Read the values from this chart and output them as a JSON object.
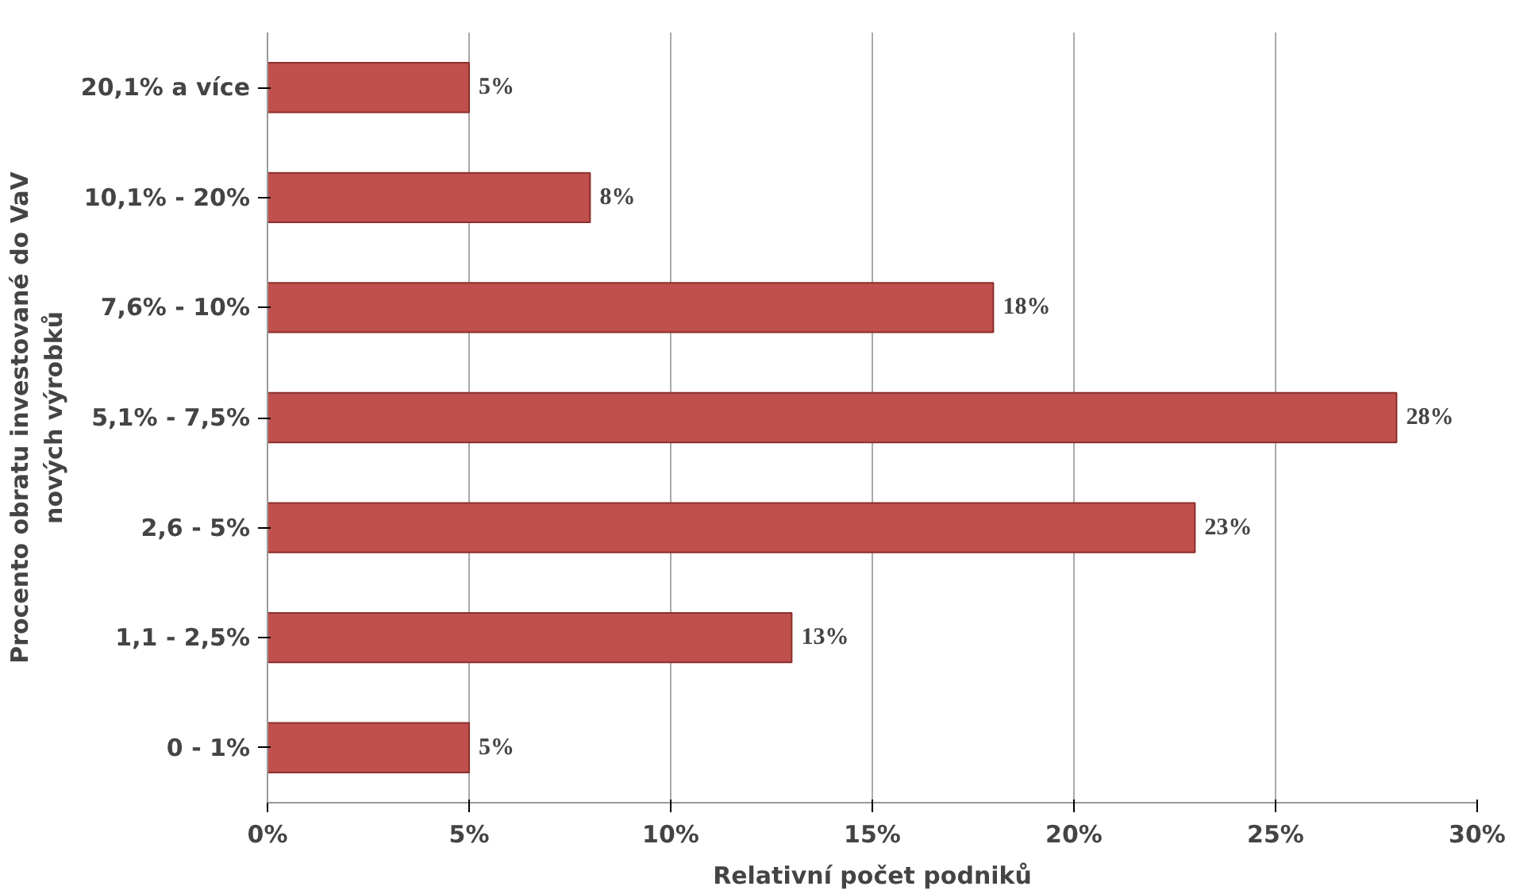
{
  "chart_data": {
    "type": "bar",
    "orientation": "horizontal",
    "categories": [
      "20,1% a více",
      "10,1% - 20%",
      "7,6% - 10%",
      "5,1% - 7,5%",
      "2,6 - 5%",
      "1,1 - 2,5%",
      "0 - 1%"
    ],
    "values": [
      5,
      8,
      18,
      28,
      23,
      13,
      5
    ],
    "value_labels": [
      "5%",
      "8%",
      "18%",
      "28%",
      "23%",
      "13%",
      "5%"
    ],
    "color": "#c0504d",
    "xlim": [
      0,
      30
    ],
    "xticks": [
      {
        "value": 0,
        "label": "0%"
      },
      {
        "value": 5,
        "label": "5%"
      },
      {
        "value": 10,
        "label": "10%"
      },
      {
        "value": 15,
        "label": "15%"
      },
      {
        "value": 20,
        "label": "20%"
      },
      {
        "value": 25,
        "label": "25%"
      },
      {
        "value": 30,
        "label": "30%"
      }
    ],
    "xlabel": "Relativní počet podniků",
    "ylabel": "Procento obratu investované do VaV\nnových výrobků",
    "grid": "x"
  }
}
